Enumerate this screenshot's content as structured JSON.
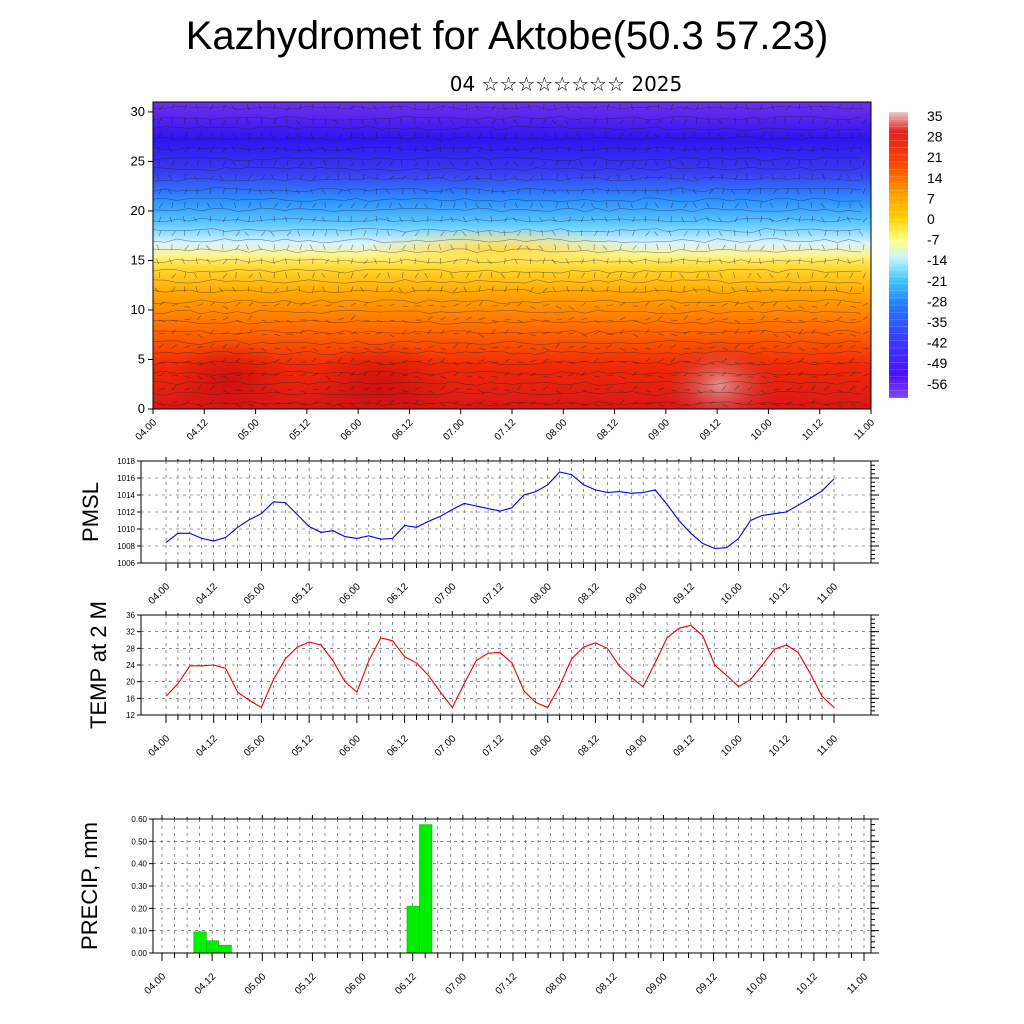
{
  "title": "Kazhydromet for Aktobe(50.3 57.23)",
  "subtitle": "04 ☆☆☆☆☆☆☆☆ 2025",
  "time_labels": [
    "04.00",
    "04.12",
    "05.00",
    "05.12",
    "06.00",
    "06.12",
    "07.00",
    "07.12",
    "08.00",
    "08.12",
    "09.00",
    "09.12",
    "10.00",
    "10.12",
    "11.00"
  ],
  "chart_data": [
    {
      "type": "heatmap",
      "title": "",
      "ylim": [
        0,
        31
      ],
      "yticks": [
        0,
        5,
        10,
        15,
        20,
        25,
        30
      ],
      "colorbar": {
        "labels": [
          "35",
          "28",
          "21",
          "14",
          "7",
          "0",
          "-7",
          "-14",
          "-21",
          "-28",
          "-35",
          "-42",
          "-49",
          "-56"
        ],
        "colors_top_to_bottom": [
          "#e8c0c0",
          "#e02020",
          "#ff5a00",
          "#ff9600",
          "#ffc800",
          "#ffff80",
          "#c0f0ff",
          "#40c0ff",
          "#2080ff",
          "#3040ff",
          "#5010ff",
          "#8040ff"
        ]
      },
      "note_values": "temperature field warm (>21) near surface, cold (<-49) above 25"
    },
    {
      "type": "line",
      "ylabel": "PMSL",
      "ylim": [
        1006,
        1018
      ],
      "yticks": [
        1006,
        1008,
        1010,
        1012,
        1014,
        1016,
        1018
      ],
      "color": "#0000dd",
      "series": [
        {
          "values": [
            1008.4,
            1009.5,
            1009.5,
            1008.9,
            1008.6,
            1009.0,
            1010.2,
            1011.1,
            1011.8,
            1013.2,
            1013.1,
            1011.7,
            1010.3,
            1009.6,
            1009.8,
            1009.1,
            1008.9,
            1009.2,
            1008.8,
            1008.9,
            1010.4,
            1010.2,
            1010.9,
            1011.5,
            1012.3,
            1013.0,
            1012.7,
            1012.4,
            1012.1,
            1012.5,
            1014.0,
            1014.4,
            1015.2,
            1016.7,
            1016.4,
            1015.2,
            1014.6,
            1014.3,
            1014.4,
            1014.2,
            1014.3,
            1014.6,
            1012.9,
            1011.0,
            1009.5,
            1008.3,
            1007.7,
            1007.8,
            1008.9,
            1011.0,
            1011.6,
            1011.8,
            1012.0,
            1012.8,
            1013.6,
            1014.5,
            1015.9
          ]
        }
      ]
    },
    {
      "type": "line",
      "ylabel": "TEMP at 2 M",
      "ylim": [
        12,
        36
      ],
      "yticks": [
        12,
        16,
        20,
        24,
        28,
        32,
        36
      ],
      "color": "#ee0000",
      "series": [
        {
          "values": [
            16.5,
            19.5,
            23.8,
            23.8,
            24.0,
            23.2,
            17.5,
            15.5,
            13.8,
            20.5,
            25.5,
            28.3,
            29.5,
            28.8,
            25.0,
            20.0,
            17.5,
            25.0,
            30.5,
            29.8,
            26.0,
            24.5,
            21.5,
            17.5,
            13.8,
            19.5,
            25.0,
            26.8,
            27.0,
            24.5,
            17.8,
            15.0,
            13.8,
            19.0,
            25.5,
            28.3,
            29.3,
            28.0,
            23.8,
            21.0,
            18.8,
            24.5,
            30.5,
            32.8,
            33.5,
            31.0,
            24.0,
            21.5,
            18.8,
            20.5,
            24.0,
            27.8,
            28.8,
            27.0,
            22.0,
            16.5,
            13.8
          ]
        }
      ]
    },
    {
      "type": "bar",
      "ylabel": "PRECIP, mm",
      "ylim": [
        0,
        0.6
      ],
      "yticks": [
        "0.00",
        "0.10",
        "0.20",
        "0.30",
        "0.40",
        "0.50",
        "0.60"
      ],
      "color": "#00ee00",
      "bars": [
        {
          "step": 3,
          "value": 0.095
        },
        {
          "step": 4,
          "value": 0.055
        },
        {
          "step": 5,
          "value": 0.035
        },
        {
          "step": 20,
          "value": 0.21
        },
        {
          "step": 21,
          "value": 0.575
        }
      ]
    }
  ]
}
